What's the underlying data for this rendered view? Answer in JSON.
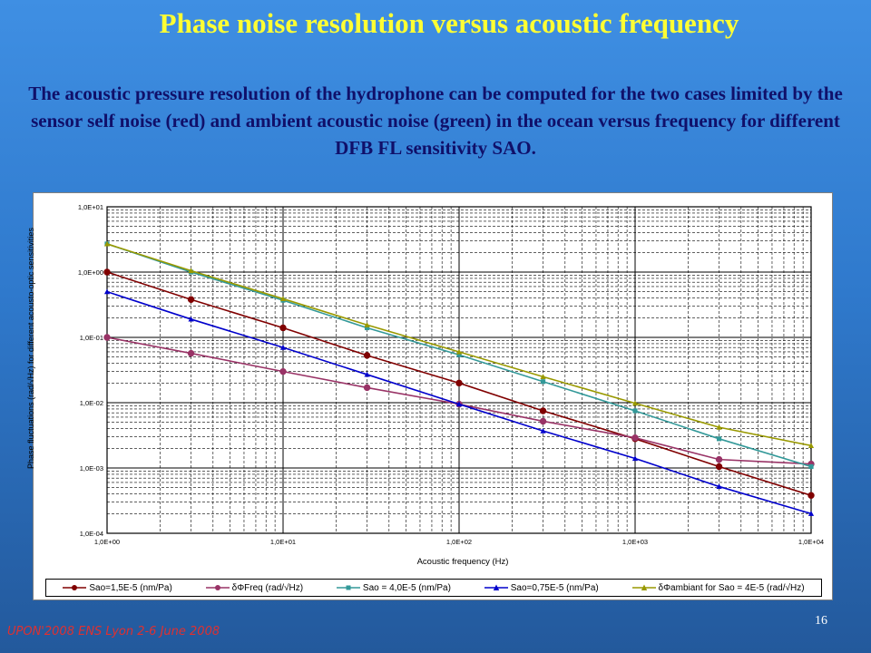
{
  "slide": {
    "title": "Phase noise resolution versus acoustic frequency",
    "body": "The acoustic pressure resolution of the hydrophone can be computed for the two cases limited by the sensor self noise (red) and ambient acoustic noise (green)  in the ocean versus frequency for different DFB FL sensitivity SAO.",
    "footer": "UPON'2008 ENS Lyon 2-6 June 2008",
    "page_number": "16"
  },
  "chart_data": {
    "type": "line",
    "xscale": "log",
    "yscale": "log",
    "xlim": [
      1,
      10000
    ],
    "ylim": [
      0.0001,
      10
    ],
    "grid": true,
    "legend_position": "bottom",
    "xlabel": "Acoustic frequency (Hz)",
    "ylabel": "Phase fluctuations (rad/√Hz) for different acousto-optic sensitivities",
    "xtick_labels": [
      "1,0E+00",
      "1,0E+01",
      "1,0E+02",
      "1,0E+03",
      "1,0E+04"
    ],
    "ytick_labels": [
      "1,0E+01",
      "1,0E+00",
      "1,0E-01",
      "1,0E-02",
      "1,0E-03",
      "1,0E-04"
    ],
    "x": [
      1,
      3,
      10,
      30,
      100,
      300,
      1000,
      3000,
      10000
    ],
    "series": [
      {
        "name": "Sao=1,5E-5 (nm/Pa)",
        "color": "#800000",
        "marker": "circle",
        "values": [
          1.0,
          0.38,
          0.14,
          0.053,
          0.02,
          0.0075,
          0.0028,
          0.00105,
          0.00038
        ]
      },
      {
        "name": "δΦFreq (rad/√Hz)",
        "color": "#993366",
        "marker": "circle",
        "values": [
          0.1,
          0.057,
          0.03,
          0.017,
          0.0095,
          0.0052,
          0.0029,
          0.00135,
          0.00115
        ]
      },
      {
        "name": "Sao = 4,0E-5 (nm/Pa)",
        "color": "#339999",
        "marker": "square",
        "values": [
          2.7,
          1.0,
          0.37,
          0.14,
          0.054,
          0.021,
          0.0075,
          0.0028,
          0.00105
        ]
      },
      {
        "name": "Sao=0,75E-5 (nm/Pa)",
        "color": "#0000cc",
        "marker": "triangle",
        "values": [
          0.5,
          0.19,
          0.07,
          0.027,
          0.0095,
          0.0037,
          0.0014,
          0.00052,
          0.0002
        ]
      },
      {
        "name": "δΦambiant for Sao = 4E-5 (rad/√Hz)",
        "color": "#999900",
        "marker": "triangle",
        "values": [
          2.7,
          1.05,
          0.39,
          0.155,
          0.06,
          0.025,
          0.0098,
          0.0042,
          0.0022
        ]
      }
    ]
  }
}
